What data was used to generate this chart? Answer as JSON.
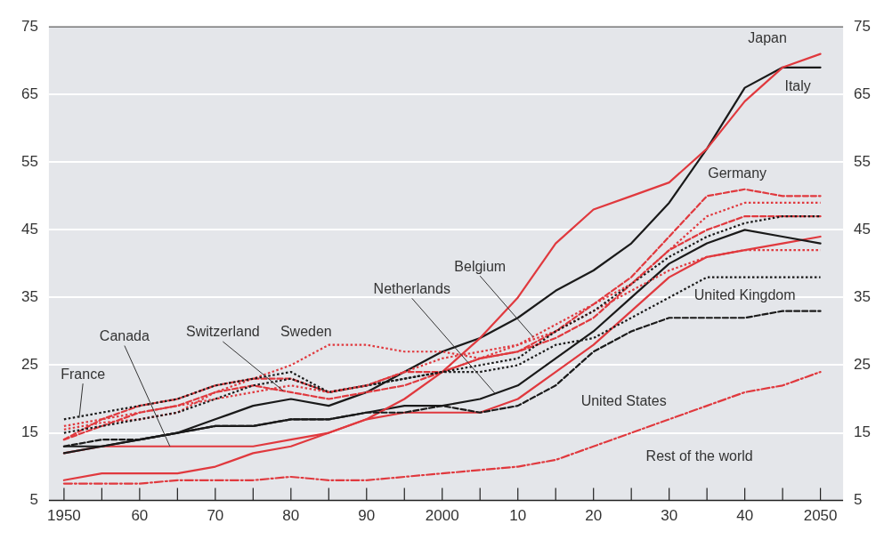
{
  "chart_data": {
    "type": "line",
    "x": [
      1950,
      1955,
      1960,
      1965,
      1970,
      1975,
      1980,
      1985,
      1990,
      1995,
      2000,
      2005,
      2010,
      2015,
      2020,
      2025,
      2030,
      2035,
      2040,
      2045,
      2050
    ],
    "series": [
      {
        "name": "Japan",
        "color": "#e0393e",
        "line_style": "solid",
        "values": [
          8,
          9,
          9,
          9,
          10,
          12,
          13,
          15,
          17,
          20,
          24,
          29,
          35,
          43,
          48,
          50,
          52,
          57,
          64,
          69,
          71
        ]
      },
      {
        "name": "Italy",
        "color": "#1a1a1a",
        "line_style": "solid",
        "values": [
          13,
          13,
          14,
          15,
          17,
          19,
          20,
          19,
          21,
          24,
          27,
          29,
          32,
          36,
          39,
          43,
          49,
          57,
          66,
          69,
          69
        ]
      },
      {
        "name": "Germany",
        "color": "#e0393e",
        "line_style": "dashed",
        "values": [
          14,
          17,
          19,
          20,
          22,
          23,
          23,
          21,
          22,
          24,
          24,
          26,
          27,
          30,
          34,
          38,
          44,
          50,
          51,
          50,
          50
        ]
      },
      {
        "color": "#e0393e",
        "line_style": "dotted",
        "values": [
          16,
          17,
          18,
          19,
          20,
          21,
          22,
          21,
          22,
          24,
          26,
          27,
          28,
          31,
          34,
          37,
          42,
          47,
          49,
          49,
          49
        ]
      },
      {
        "color": "#e0393e",
        "line_style": "dashed",
        "values": [
          14,
          16,
          18,
          19,
          21,
          22,
          21,
          20,
          21,
          22,
          24,
          26,
          27,
          29,
          32,
          37,
          42,
          45,
          47,
          47,
          47
        ]
      },
      {
        "name": "France",
        "color": "#1a1a1a",
        "line_style": "dotted",
        "values": [
          17,
          18,
          19,
          20,
          22,
          23,
          24,
          21,
          22,
          23,
          24,
          25,
          26,
          30,
          33,
          37,
          41,
          44,
          46,
          47,
          47
        ]
      },
      {
        "color": "#1a1a1a",
        "line_style": "solid",
        "values": [
          12,
          13,
          14,
          15,
          16,
          16,
          17,
          17,
          18,
          19,
          19,
          20,
          22,
          26,
          30,
          35,
          40,
          43,
          45,
          44,
          43
        ]
      },
      {
        "color": "#e0393e",
        "line_style": "solid",
        "values": [
          12,
          13,
          13,
          13,
          13,
          13,
          14,
          15,
          17,
          18,
          18,
          18,
          20,
          24,
          28,
          33,
          38,
          41,
          42,
          43,
          44
        ]
      },
      {
        "name": "United Kingdom",
        "color": "#1a1a1a",
        "line_style": "dotted",
        "values": [
          15,
          16,
          17,
          18,
          20,
          22,
          23,
          21,
          22,
          23,
          24,
          24,
          25,
          28,
          29,
          32,
          35,
          38,
          38,
          38,
          38
        ]
      },
      {
        "name": "Sweden",
        "color": "#e0393e",
        "line_style": "dotted",
        "values": [
          15.5,
          16.5,
          17,
          18,
          21,
          23,
          25,
          28,
          28,
          27,
          27,
          26,
          28,
          30,
          33,
          36,
          39,
          41,
          42,
          42,
          42
        ]
      },
      {
        "color": "#1a1a1a",
        "line_style": "dashed",
        "values": [
          13,
          14,
          14,
          15,
          16,
          16,
          17,
          17,
          18,
          18,
          19,
          18,
          19,
          22,
          27,
          30,
          32,
          32,
          32,
          33,
          33
        ]
      },
      {
        "name": "Rest of the world",
        "color": "#e0393e",
        "line_style": "dashdot",
        "values": [
          7.5,
          7.5,
          7.5,
          8,
          8,
          8,
          8.5,
          8,
          8,
          8.5,
          9,
          9.5,
          10,
          11,
          13,
          15,
          17,
          19,
          21,
          22,
          24
        ]
      }
    ],
    "annotations": [
      {
        "text": "Switzerland",
        "x": 1979,
        "y": 21.2
      },
      {
        "text": "Canada",
        "x": 1964,
        "y": 13
      },
      {
        "text": "Netherlands",
        "x": 2007,
        "y": 20.8
      },
      {
        "text": "Belgium",
        "x": 2012,
        "y": 29.2
      },
      {
        "text": "United States",
        "x": 2020,
        "y": 27
      }
    ],
    "xlim": [
      1948,
      2053
    ],
    "xticks": [
      {
        "value": 1950,
        "label": "1950"
      },
      {
        "value": 1955,
        "label": null
      },
      {
        "value": 1960,
        "label": "60"
      },
      {
        "value": 1965,
        "label": null
      },
      {
        "value": 1970,
        "label": "70"
      },
      {
        "value": 1975,
        "label": null
      },
      {
        "value": 1980,
        "label": "80"
      },
      {
        "value": 1985,
        "label": null
      },
      {
        "value": 1990,
        "label": "90"
      },
      {
        "value": 1995,
        "label": null
      },
      {
        "value": 2000,
        "label": "2000"
      },
      {
        "value": 2005,
        "label": null
      },
      {
        "value": 2010,
        "label": "10"
      },
      {
        "value": 2015,
        "label": null
      },
      {
        "value": 2020,
        "label": "20"
      },
      {
        "value": 2025,
        "label": null
      },
      {
        "value": 2030,
        "label": "30"
      },
      {
        "value": 2035,
        "label": null
      },
      {
        "value": 2040,
        "label": "40"
      },
      {
        "value": 2045,
        "label": null
      },
      {
        "value": 2050,
        "label": "2050"
      }
    ],
    "ylim": [
      5,
      75
    ],
    "yticks": [
      5,
      15,
      25,
      35,
      45,
      55,
      65,
      75
    ],
    "y2lim": [
      5,
      75
    ],
    "y2ticks": [
      5,
      15,
      25,
      35,
      45,
      55,
      65,
      75
    ],
    "grid": "y",
    "legend": false,
    "marker": "none"
  }
}
